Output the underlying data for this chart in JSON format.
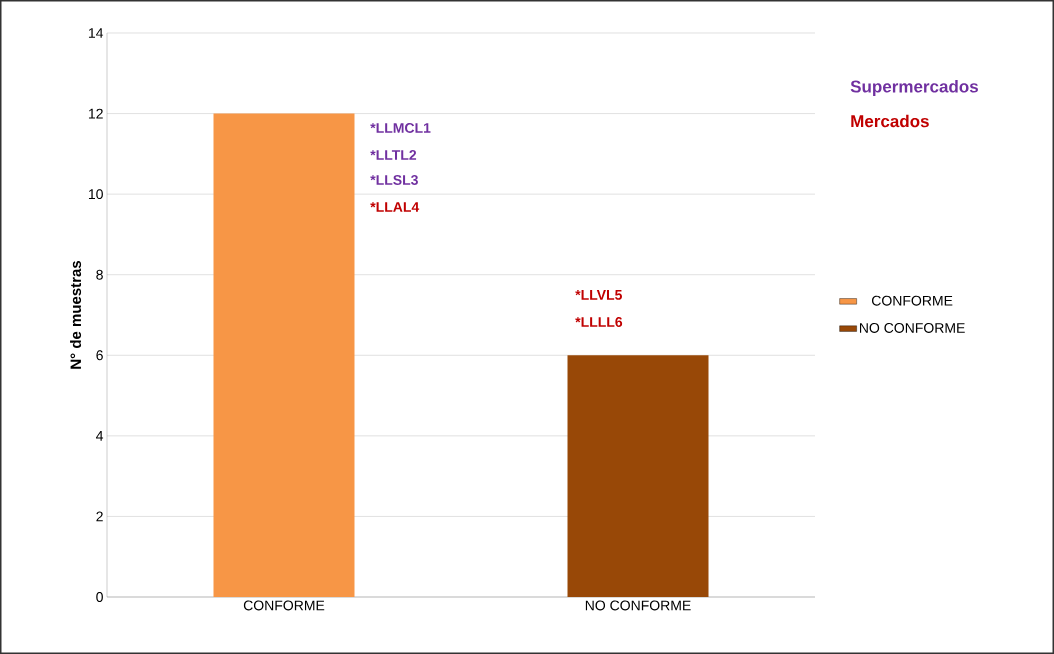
{
  "chart_data": {
    "type": "bar",
    "ylabel": "N° de muestras",
    "categories": [
      "CONFORME",
      "NO CONFORME"
    ],
    "series": [
      {
        "name": "CONFORME",
        "color": "#f79646",
        "values": [
          12,
          null
        ]
      },
      {
        "name": "NO CONFORME",
        "color": "#984807",
        "values": [
          null,
          6
        ]
      }
    ],
    "ylim": [
      0,
      14
    ],
    "yticks": [
      0,
      2,
      4,
      6,
      8,
      10,
      12,
      14
    ],
    "grid": "y",
    "legend": "right",
    "annotations": [
      "Supermercados",
      "Mercados",
      "*LLMCL1",
      "*LLTL2",
      "*LLSL3",
      "*LLAL4",
      "*LLVL5",
      "*LLLL6"
    ]
  }
}
